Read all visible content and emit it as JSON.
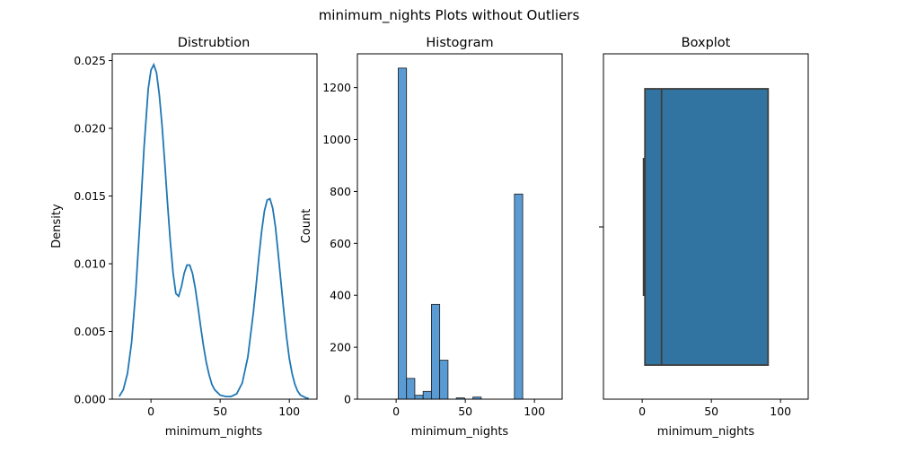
{
  "figure": {
    "suptitle": "minimum_nights Plots without Outliers"
  },
  "colors": {
    "line": "#1f77b4",
    "hist_fill": "#5a9bd4",
    "box_fill": "#3274a1",
    "box_edge": "#3d3d3d"
  },
  "chart_data": [
    {
      "type": "line",
      "title": "Distrubtion",
      "xlabel": "minimum_nights",
      "ylabel": "Density",
      "xlim": [
        -28,
        120
      ],
      "ylim": [
        0,
        0.0255
      ],
      "xticks": [
        0,
        50,
        100
      ],
      "xtick_labels": [
        "0",
        "50",
        "100"
      ],
      "yticks": [
        0,
        0.005,
        0.01,
        0.015,
        0.02,
        0.025
      ],
      "ytick_labels": [
        "0.000",
        "0.005",
        "0.010",
        "0.015",
        "0.020",
        "0.025"
      ],
      "series": [
        {
          "x": [
            -23,
            -20,
            -17,
            -14,
            -11,
            -8,
            -5,
            -2,
            0,
            2,
            4,
            6,
            8,
            10,
            12,
            14,
            16,
            18,
            20,
            22,
            24,
            26,
            28,
            30,
            32,
            34,
            36,
            38,
            40,
            42,
            44,
            46,
            48,
            50,
            54,
            58,
            62,
            66,
            70,
            74,
            76,
            78,
            80,
            82,
            84,
            86,
            88,
            90,
            92,
            94,
            96,
            98,
            100,
            102,
            104,
            106,
            108,
            110,
            112,
            114
          ],
          "y": [
            0.0002,
            0.0007,
            0.0019,
            0.0042,
            0.008,
            0.0131,
            0.0186,
            0.0229,
            0.0243,
            0.0247,
            0.0241,
            0.0225,
            0.0202,
            0.0174,
            0.0144,
            0.0116,
            0.0093,
            0.0078,
            0.0076,
            0.0083,
            0.0093,
            0.0099,
            0.0099,
            0.0093,
            0.0082,
            0.0068,
            0.0053,
            0.0039,
            0.0027,
            0.0018,
            0.0011,
            0.0007,
            0.0005,
            0.0003,
            0.0002,
            0.0002,
            0.0004,
            0.0012,
            0.0031,
            0.0064,
            0.0084,
            0.0105,
            0.0124,
            0.0139,
            0.0147,
            0.0148,
            0.0141,
            0.0127,
            0.0107,
            0.0086,
            0.0065,
            0.0046,
            0.003,
            0.0019,
            0.0011,
            0.0006,
            0.0003,
            0.0002,
            0.0001,
            5e-05
          ]
        }
      ],
      "grid": false
    },
    {
      "type": "bar",
      "subtype": "histogram",
      "title": "Histogram",
      "xlabel": "minimum_nights",
      "ylabel": "Count",
      "xlim": [
        -28,
        120
      ],
      "ylim": [
        0,
        1330
      ],
      "xticks": [
        0,
        50,
        100
      ],
      "xtick_labels": [
        "0",
        "50",
        "100"
      ],
      "yticks": [
        0,
        200,
        400,
        600,
        800,
        1000,
        1200
      ],
      "ytick_labels": [
        "0",
        "200",
        "400",
        "600",
        "800",
        "1000",
        "1200"
      ],
      "bins": [
        {
          "x0": 1.5,
          "x1": 7.5,
          "count": 1275
        },
        {
          "x0": 7.5,
          "x1": 13.5,
          "count": 80
        },
        {
          "x0": 13.5,
          "x1": 19.5,
          "count": 15
        },
        {
          "x0": 19.5,
          "x1": 25.5,
          "count": 30
        },
        {
          "x0": 25.5,
          "x1": 31.5,
          "count": 365
        },
        {
          "x0": 31.5,
          "x1": 37.5,
          "count": 150
        },
        {
          "x0": 37.5,
          "x1": 43.5,
          "count": 0
        },
        {
          "x0": 43.5,
          "x1": 49.5,
          "count": 5
        },
        {
          "x0": 49.5,
          "x1": 55.5,
          "count": 0
        },
        {
          "x0": 55.5,
          "x1": 61.5,
          "count": 8
        },
        {
          "x0": 61.5,
          "x1": 67.5,
          "count": 0
        },
        {
          "x0": 67.5,
          "x1": 73.5,
          "count": 0
        },
        {
          "x0": 73.5,
          "x1": 79.5,
          "count": 0
        },
        {
          "x0": 79.5,
          "x1": 85.5,
          "count": 0
        },
        {
          "x0": 85.5,
          "x1": 91.5,
          "count": 790
        }
      ],
      "grid": false
    },
    {
      "type": "box",
      "title": "Boxplot",
      "xlabel": "minimum_nights",
      "xlim": [
        -28,
        120
      ],
      "xticks": [
        0,
        50,
        100
      ],
      "xtick_labels": [
        "0",
        "50",
        "100"
      ],
      "stats": {
        "min": 1,
        "q1": 2,
        "median": 14,
        "q3": 91,
        "max": 91
      },
      "grid": false
    }
  ]
}
